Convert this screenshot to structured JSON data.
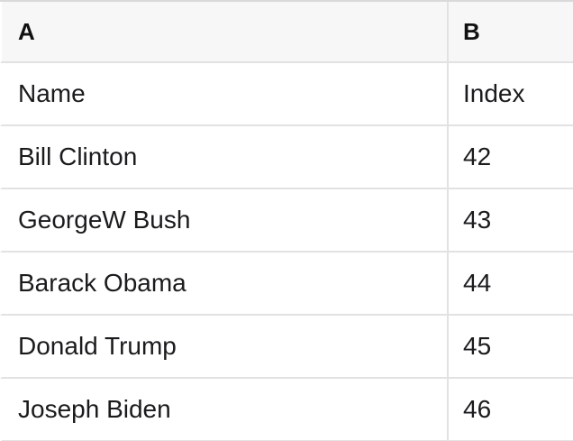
{
  "table": {
    "column_headers": [
      "A",
      "B"
    ],
    "rows": [
      {
        "name": "Name",
        "index": "Index"
      },
      {
        "name": "Bill Clinton",
        "index": "42"
      },
      {
        "name": "GeorgeW Bush",
        "index": "43"
      },
      {
        "name": "Barack Obama",
        "index": "44"
      },
      {
        "name": "Donald Trump",
        "index": "45"
      },
      {
        "name": "Joseph Biden",
        "index": "46"
      }
    ]
  },
  "colors": {
    "header_bg": "#f7f7f7",
    "grid_border": "#e2e2e2",
    "top_border": "#d9d9d9",
    "text": "#1b1b1d",
    "row_bg": "#ffffff"
  }
}
